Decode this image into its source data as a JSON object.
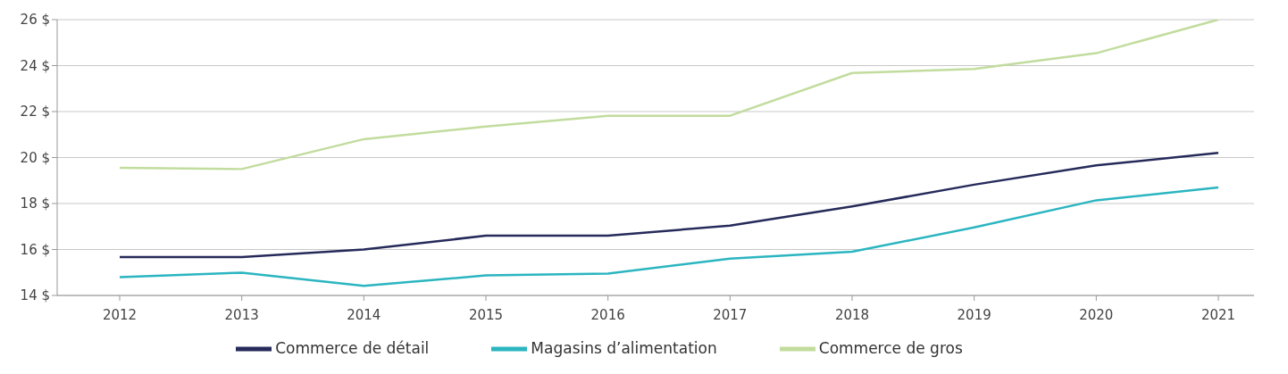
{
  "chart_data": {
    "type": "line",
    "categories": [
      "2012",
      "2013",
      "2014",
      "2015",
      "2016",
      "2017",
      "2018",
      "2019",
      "2020",
      "2021"
    ],
    "series": [
      {
        "name": "Commerce de détail",
        "color": "#262a5a",
        "values": [
          15.67,
          15.67,
          16.0,
          16.6,
          16.6,
          17.04,
          17.87,
          18.82,
          19.66,
          20.2
        ]
      },
      {
        "name": "Magasins d’alimentation",
        "color": "#2bb5c0",
        "values": [
          14.8,
          14.99,
          14.42,
          14.87,
          14.95,
          15.6,
          15.9,
          16.96,
          18.14,
          18.7
        ]
      },
      {
        "name": "Commerce de gros",
        "color": "#c2dc9e",
        "values": [
          19.55,
          19.5,
          20.8,
          21.35,
          21.82,
          21.82,
          23.68,
          23.85,
          24.54,
          26.0
        ]
      }
    ],
    "ylim": [
      14,
      26
    ],
    "yticks": [
      {
        "value": 14,
        "label": "14 $"
      },
      {
        "value": 16,
        "label": "16 $"
      },
      {
        "value": 18,
        "label": "18 $"
      },
      {
        "value": 20,
        "label": "20 $"
      },
      {
        "value": 22,
        "label": "22 $"
      },
      {
        "value": 24,
        "label": "24 $"
      },
      {
        "value": 26,
        "label": "26 $"
      }
    ],
    "grid": "y",
    "legend": "bottom",
    "marker": "none",
    "line_style": "solid"
  }
}
